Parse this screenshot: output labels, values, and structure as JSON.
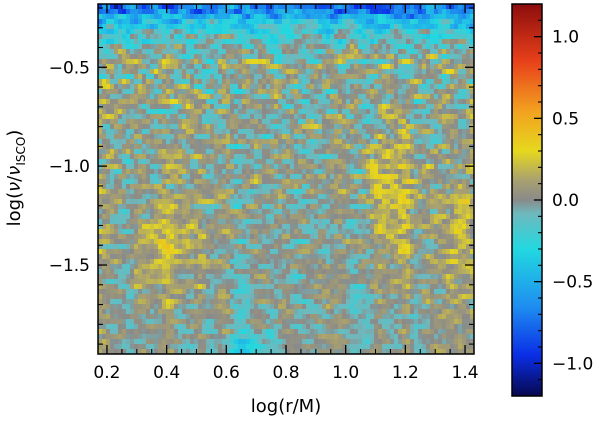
{
  "chart_data": {
    "type": "heatmap",
    "title": "",
    "xlabel": "log(r/M)",
    "ylabel": {
      "prefix": "log(",
      "nu": "ν",
      "slash": "/",
      "nu2": "ν",
      "subscript": "ISCO",
      "suffix": ")"
    },
    "xlim": [
      0.17,
      1.43
    ],
    "ylim": [
      -1.95,
      -0.18
    ],
    "x_ticks": [
      {
        "value": 0.2,
        "label": "0.2"
      },
      {
        "value": 0.4,
        "label": "0.4"
      },
      {
        "value": 0.6,
        "label": "0.6"
      },
      {
        "value": 0.8,
        "label": "0.8"
      },
      {
        "value": 1.0,
        "label": "1.0"
      },
      {
        "value": 1.2,
        "label": "1.2"
      },
      {
        "value": 1.4,
        "label": "1.4"
      }
    ],
    "y_ticks": [
      {
        "value": -0.5,
        "label": "−0.5"
      },
      {
        "value": -1.0,
        "label": "−1.0"
      },
      {
        "value": -1.5,
        "label": "−1.5"
      }
    ],
    "colorbar": {
      "range": [
        -1.2,
        1.2
      ],
      "ticks": [
        {
          "value": 1.0,
          "label": "1.0"
        },
        {
          "value": 0.5,
          "label": "0.5"
        },
        {
          "value": 0.0,
          "label": "0.0"
        },
        {
          "value": -0.5,
          "label": "−0.5"
        },
        {
          "value": -1.0,
          "label": "−1.0"
        }
      ],
      "colormap": [
        {
          "value": -1.2,
          "color": "#08084f"
        },
        {
          "value": -0.95,
          "color": "#0a2ee6"
        },
        {
          "value": -0.65,
          "color": "#1e8ef0"
        },
        {
          "value": -0.3,
          "color": "#22d8e0"
        },
        {
          "value": -0.08,
          "color": "#6fb8bc"
        },
        {
          "value": 0.0,
          "color": "#8a8a8a"
        },
        {
          "value": 0.12,
          "color": "#a8a070"
        },
        {
          "value": 0.3,
          "color": "#e6d81e"
        },
        {
          "value": 0.55,
          "color": "#f2a020"
        },
        {
          "value": 0.85,
          "color": "#e8401a"
        },
        {
          "value": 1.2,
          "color": "#8c0d0d"
        }
      ]
    }
  }
}
